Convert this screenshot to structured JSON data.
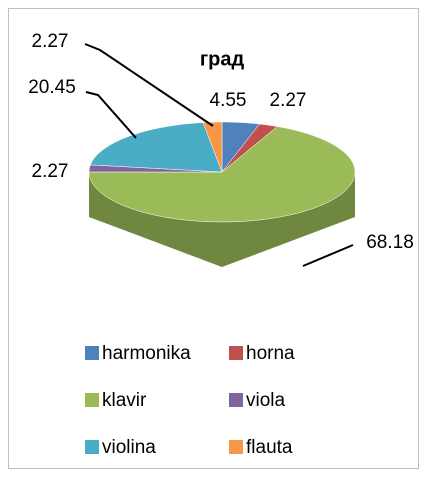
{
  "chart_data": {
    "type": "pie",
    "title": "град",
    "categories": [
      "harmonika",
      "horna",
      "klavir",
      "viola",
      "violina",
      "flauta"
    ],
    "values": [
      4.55,
      2.27,
      68.18,
      2.27,
      20.45,
      2.27
    ],
    "colors": [
      "#4f81bd",
      "#c0504d",
      "#9bbb59",
      "#8064a2",
      "#4bacc6",
      "#f79646"
    ]
  }
}
